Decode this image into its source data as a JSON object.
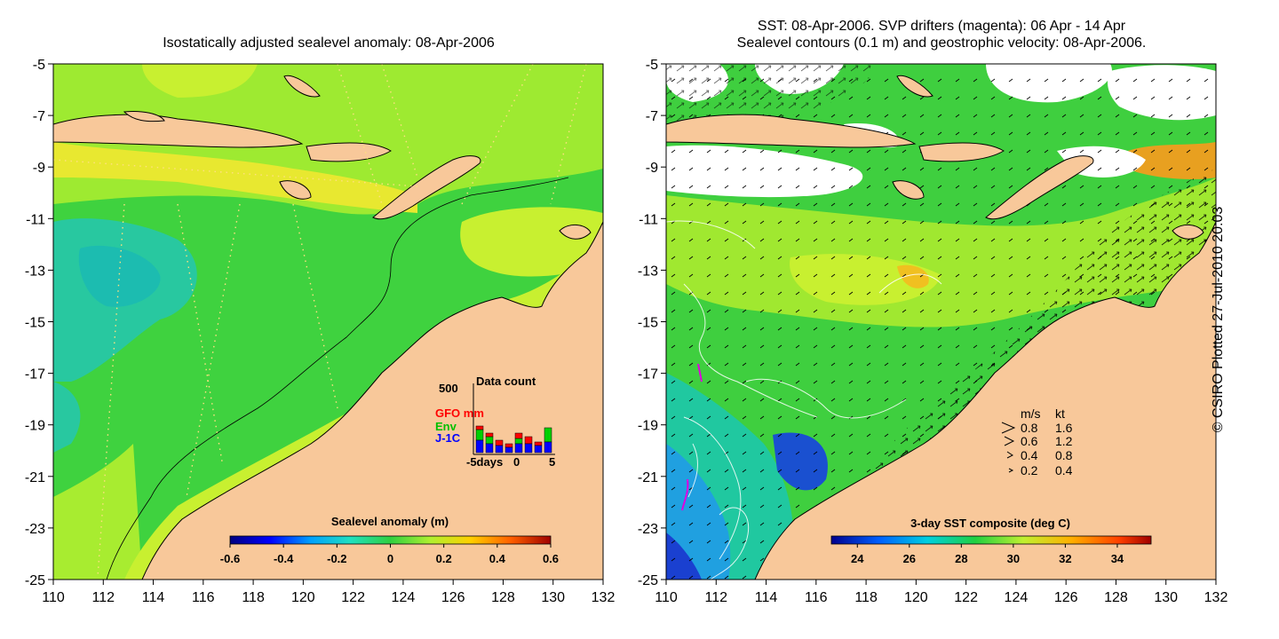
{
  "left_map": {
    "title": "Isostatically adjusted sealevel anomaly: 08-Apr-2006",
    "lon_ticks": [
      "110",
      "112",
      "114",
      "116",
      "118",
      "120",
      "122",
      "124",
      "126",
      "128",
      "130",
      "132"
    ],
    "lat_ticks": [
      "-5",
      "-7",
      "-9",
      "-11",
      "-13",
      "-15",
      "-17",
      "-19",
      "-21",
      "-23",
      "-25"
    ],
    "lon_range": [
      110,
      132
    ],
    "lat_range": [
      -25,
      -5
    ],
    "colorbar": {
      "label": "Sealevel anomaly (m)",
      "ticks": [
        "-0.6",
        "-0.4",
        "-0.2",
        "0",
        "0.2",
        "0.4",
        "0.6"
      ],
      "range": [
        -0.6,
        0.6
      ]
    },
    "data_count": {
      "title": "Data count",
      "y_max_label": "500",
      "legend": [
        {
          "label": "GFO mm",
          "color": "#ff0000"
        },
        {
          "label": "Env",
          "color": "#00e000"
        },
        {
          "label": "J-1C",
          "color": "#0000ff"
        }
      ],
      "x_labels": [
        "-5days",
        "0",
        "5"
      ]
    }
  },
  "right_map": {
    "title_line1": "SST: 08-Apr-2006. SVP drifters (magenta): 06 Apr - 14 Apr",
    "title_line2": "Sealevel contours (0.1 m) and geostrophic velocity: 08-Apr-2006.",
    "lon_ticks": [
      "110",
      "112",
      "114",
      "116",
      "118",
      "120",
      "122",
      "124",
      "126",
      "128",
      "130",
      "132"
    ],
    "lat_ticks": [
      "-5",
      "-7",
      "-9",
      "-11",
      "-13",
      "-15",
      "-17",
      "-19",
      "-21",
      "-23",
      "-25"
    ],
    "lon_range": [
      110,
      132
    ],
    "lat_range": [
      -25,
      -5
    ],
    "velocity_key": {
      "headers": [
        "m/s",
        "kt"
      ],
      "rows": [
        {
          "ms": "0.8",
          "kt": "1.6"
        },
        {
          "ms": "0.6",
          "kt": "1.2"
        },
        {
          "ms": "0.4",
          "kt": "0.8"
        },
        {
          "ms": "0.2",
          "kt": "0.4"
        }
      ]
    },
    "colorbar": {
      "label": "3-day SST composite (deg C)",
      "ticks": [
        "24",
        "26",
        "28",
        "30",
        "32",
        "34"
      ],
      "range": [
        23,
        35.3
      ]
    }
  },
  "credit": "© CSIRO Plotted 27-Jul-2010 20:03",
  "colors": {
    "land": "#f8c89a",
    "sea_green": "#3fd23f",
    "sea_yellow": "#c8f030",
    "sea_cyan": "#28c8a0",
    "sst_blue": "#1a60e0",
    "cloud": "#ffffff"
  }
}
